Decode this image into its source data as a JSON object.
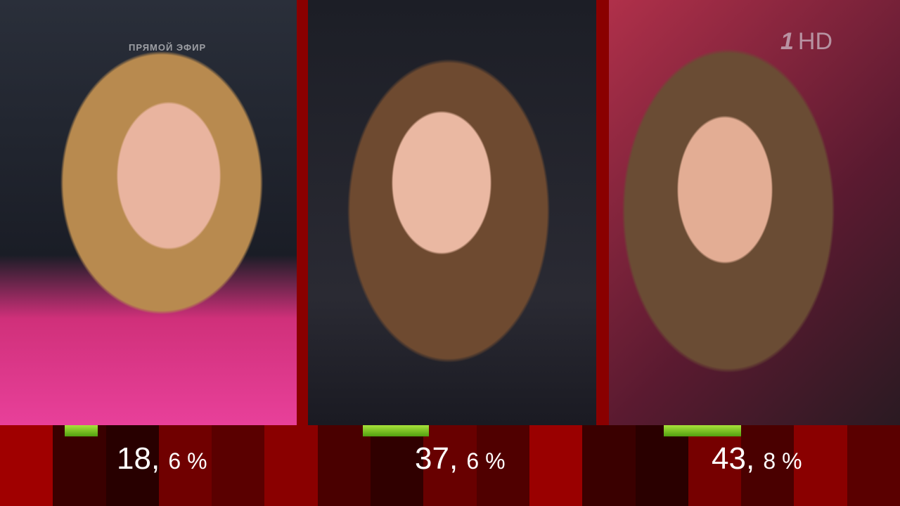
{
  "broadcast": {
    "live_label": "ПРЯМОЙ ЭФИР",
    "channel_logo": "1",
    "channel_hd": "HD"
  },
  "contestants": [
    {
      "percent_int": "18,",
      "percent_dec": "6 %",
      "value": 18.6
    },
    {
      "percent_int": "37,",
      "percent_dec": "6 %",
      "value": 37.6
    },
    {
      "percent_int": "43,",
      "percent_dec": "8 %",
      "value": 43.8
    }
  ],
  "colors": {
    "bar": "#7cc623",
    "band": "#8a0000"
  }
}
